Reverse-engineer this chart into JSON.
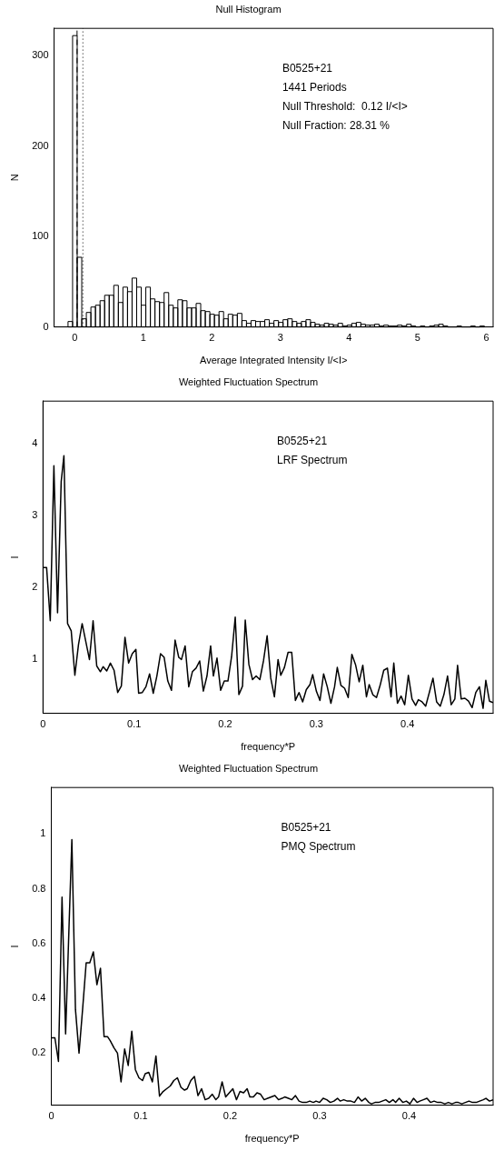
{
  "chart_data": [
    {
      "type": "histogram",
      "title": "Null Histogram",
      "xlabel": "Average Integrated Intensity I/<I>",
      "ylabel": "N",
      "color": "#000000",
      "grid": false,
      "annotations": [
        "B0525+21",
        "1441 Periods",
        "Null Threshold:  0.12 I/<I>",
        "Null Fraction: 28.31 %"
      ],
      "bins": [
        -0.0967,
        -0.03,
        0.0367,
        0.1034,
        0.1701,
        0.2368,
        0.3035,
        0.3702,
        0.4369,
        0.5036,
        0.5703,
        0.637,
        0.7037,
        0.7704,
        0.8371,
        0.9038,
        0.9705,
        1.0372,
        1.1039,
        1.1706,
        1.2373,
        1.304,
        1.3707,
        1.4374,
        1.5041,
        1.5708,
        1.6375,
        1.7042,
        1.7709,
        1.8376,
        1.9043,
        1.971,
        2.0377,
        2.1044,
        2.1711,
        2.2378,
        2.3045,
        2.3712,
        2.4379,
        2.5046,
        2.5713,
        2.638,
        2.7047,
        2.7714,
        2.8381,
        2.9048,
        2.9715,
        3.0382,
        3.1049,
        3.1716,
        3.2383,
        3.305,
        3.3717,
        3.4384,
        3.5051,
        3.5718,
        3.6385,
        3.7052,
        3.7719,
        3.8386,
        3.9053,
        3.972,
        4.0387,
        4.1054,
        4.1721,
        4.2388,
        4.3055,
        4.3722,
        4.4389,
        4.5056,
        4.5723,
        4.639,
        4.7057,
        4.7724,
        4.8391,
        4.9058,
        4.9725,
        5.0392,
        5.1059,
        5.1726,
        5.2393,
        5.306,
        5.3727,
        5.4394,
        5.5061,
        5.5728,
        5.6395,
        5.7062,
        5.7729,
        5.8396,
        5.9063,
        5.973
      ],
      "values": [
        6,
        322,
        77,
        9,
        16,
        22,
        24,
        29,
        35,
        35,
        46,
        27,
        44,
        39,
        54,
        44,
        24,
        44,
        31,
        28,
        27,
        38,
        24,
        21,
        30,
        29,
        21,
        21,
        26,
        18,
        17,
        14,
        13,
        17,
        9,
        14,
        13,
        15,
        7,
        4,
        7,
        6,
        6,
        8,
        4,
        7,
        5,
        8,
        9,
        6,
        4,
        6,
        8,
        5,
        3,
        2,
        4,
        3,
        2,
        4,
        1,
        2,
        4,
        5,
        3,
        2,
        2,
        3,
        1,
        2,
        1,
        1,
        2,
        1,
        3,
        1,
        0,
        1,
        0,
        1,
        2,
        3,
        1,
        0,
        0,
        1,
        0,
        0,
        1,
        0,
        1
      ],
      "ref_lines": [
        {
          "axis": "x",
          "value": 0.035,
          "line_style": "dashed"
        },
        {
          "axis": "x",
          "value": 0.12,
          "line_style": "dotted"
        }
      ],
      "xlim": [
        -0.3,
        6.1
      ],
      "xticks": [
        0,
        1,
        2,
        3,
        4,
        5,
        6
      ],
      "ylim": [
        0,
        330
      ],
      "yticks": [
        0,
        100,
        200,
        300
      ]
    },
    {
      "type": "line",
      "title": "Weighted Fluctuation Spectrum",
      "xlabel": "frequency*P",
      "ylabel": "I",
      "grid": false,
      "marker": "none",
      "annotations": [
        "B0525+21",
        "LRF Spectrum"
      ],
      "x": [
        0,
        0.004,
        0.008,
        0.012,
        0.016,
        0.02,
        0.023,
        0.027,
        0.031,
        0.035,
        0.039,
        0.043,
        0.047,
        0.051,
        0.055,
        0.059,
        0.063,
        0.066,
        0.07,
        0.074,
        0.078,
        0.082,
        0.086,
        0.09,
        0.094,
        0.098,
        0.102,
        0.105,
        0.109,
        0.113,
        0.117,
        0.121,
        0.125,
        0.129,
        0.133,
        0.137,
        0.141,
        0.145,
        0.149,
        0.152,
        0.156,
        0.16,
        0.164,
        0.168,
        0.172,
        0.176,
        0.18,
        0.184,
        0.187,
        0.191,
        0.195,
        0.199,
        0.203,
        0.207,
        0.211,
        0.215,
        0.219,
        0.222,
        0.226,
        0.23,
        0.234,
        0.238,
        0.242,
        0.246,
        0.25,
        0.254,
        0.258,
        0.261,
        0.265,
        0.269,
        0.273,
        0.277,
        0.281,
        0.285,
        0.289,
        0.293,
        0.296,
        0.3,
        0.304,
        0.308,
        0.312,
        0.316,
        0.32,
        0.323,
        0.327,
        0.331,
        0.335,
        0.339,
        0.343,
        0.347,
        0.351,
        0.355,
        0.358,
        0.362,
        0.366,
        0.37,
        0.374,
        0.378,
        0.382,
        0.385,
        0.389,
        0.393,
        0.397,
        0.401,
        0.405,
        0.409,
        0.412,
        0.416,
        0.42,
        0.424,
        0.428,
        0.432,
        0.436,
        0.44,
        0.444,
        0.448,
        0.452,
        0.455,
        0.459,
        0.463,
        0.467,
        0.471,
        0.475,
        0.479,
        0.483,
        0.486,
        0.49,
        0.494
      ],
      "series": [
        {
          "color": "#000000",
          "values": [
            2.27,
            2.27,
            1.53,
            3.69,
            1.64,
            3.47,
            3.83,
            1.49,
            1.39,
            0.77,
            1.2,
            1.49,
            1.24,
            0.99,
            1.53,
            0.9,
            0.82,
            0.89,
            0.83,
            0.94,
            0.84,
            0.53,
            0.62,
            1.3,
            0.94,
            1.07,
            1.13,
            0.52,
            0.53,
            0.61,
            0.79,
            0.52,
            0.76,
            1.07,
            1.02,
            0.69,
            0.56,
            1.26,
            1.02,
            0.99,
            1.18,
            0.61,
            0.82,
            0.87,
            0.97,
            0.55,
            0.76,
            1.18,
            0.76,
            1.01,
            0.56,
            0.69,
            0.69,
            1.03,
            1.58,
            0.5,
            0.62,
            1.54,
            0.92,
            0.71,
            0.76,
            0.71,
            0.97,
            1.32,
            0.73,
            0.47,
            0.99,
            0.77,
            0.88,
            1.09,
            1.09,
            0.42,
            0.53,
            0.4,
            0.57,
            0.64,
            0.78,
            0.55,
            0.42,
            0.79,
            0.61,
            0.38,
            0.61,
            0.88,
            0.63,
            0.59,
            0.46,
            1.06,
            0.92,
            0.68,
            0.91,
            0.47,
            0.64,
            0.5,
            0.46,
            0.63,
            0.84,
            0.87,
            0.47,
            0.94,
            0.38,
            0.48,
            0.36,
            0.77,
            0.44,
            0.35,
            0.43,
            0.4,
            0.34,
            0.53,
            0.73,
            0.4,
            0.34,
            0.5,
            0.76,
            0.36,
            0.44,
            0.91,
            0.44,
            0.45,
            0.41,
            0.32,
            0.53,
            0.61,
            0.31,
            0.7,
            0.41,
            0.39
          ]
        }
      ],
      "xlim": [
        0,
        0.494
      ],
      "xticks": [
        0,
        0.1,
        0.2,
        0.3,
        0.4
      ],
      "ylim": [
        0.24,
        4.59
      ],
      "yticks": [
        1,
        2,
        3,
        4
      ]
    },
    {
      "type": "line",
      "title": "Weighted Fluctuation Spectrum",
      "xlabel": "frequency*P",
      "ylabel": "I",
      "grid": false,
      "marker": "none",
      "annotations": [
        "B0525+21",
        "PMQ Spectrum"
      ],
      "x": [
        0,
        0.004,
        0.008,
        0.012,
        0.016,
        0.02,
        0.023,
        0.027,
        0.031,
        0.035,
        0.039,
        0.043,
        0.047,
        0.051,
        0.055,
        0.059,
        0.063,
        0.066,
        0.07,
        0.074,
        0.078,
        0.082,
        0.086,
        0.09,
        0.094,
        0.098,
        0.102,
        0.105,
        0.109,
        0.113,
        0.117,
        0.121,
        0.125,
        0.129,
        0.133,
        0.137,
        0.141,
        0.145,
        0.149,
        0.152,
        0.156,
        0.16,
        0.164,
        0.168,
        0.172,
        0.176,
        0.18,
        0.184,
        0.187,
        0.191,
        0.195,
        0.199,
        0.203,
        0.207,
        0.211,
        0.215,
        0.219,
        0.222,
        0.226,
        0.23,
        0.234,
        0.238,
        0.242,
        0.246,
        0.25,
        0.254,
        0.258,
        0.261,
        0.265,
        0.269,
        0.273,
        0.277,
        0.281,
        0.285,
        0.289,
        0.293,
        0.296,
        0.3,
        0.304,
        0.308,
        0.312,
        0.316,
        0.32,
        0.323,
        0.327,
        0.331,
        0.335,
        0.339,
        0.343,
        0.347,
        0.351,
        0.355,
        0.358,
        0.362,
        0.366,
        0.37,
        0.374,
        0.378,
        0.382,
        0.385,
        0.389,
        0.393,
        0.397,
        0.401,
        0.405,
        0.409,
        0.412,
        0.416,
        0.42,
        0.424,
        0.428,
        0.432,
        0.436,
        0.44,
        0.444,
        0.448,
        0.452,
        0.455,
        0.459,
        0.463,
        0.467,
        0.471,
        0.475,
        0.479,
        0.483,
        0.486,
        0.49,
        0.494
      ],
      "series": [
        {
          "color": "#000000",
          "values": [
            0.256,
            0.256,
            0.17,
            0.77,
            0.27,
            0.68,
            0.98,
            0.36,
            0.2,
            0.36,
            0.53,
            0.53,
            0.57,
            0.45,
            0.51,
            0.26,
            0.26,
            0.245,
            0.22,
            0.2,
            0.095,
            0.215,
            0.155,
            0.28,
            0.14,
            0.11,
            0.1,
            0.125,
            0.13,
            0.095,
            0.19,
            0.043,
            0.06,
            0.07,
            0.08,
            0.1,
            0.11,
            0.075,
            0.065,
            0.07,
            0.1,
            0.115,
            0.045,
            0.07,
            0.03,
            0.035,
            0.05,
            0.03,
            0.04,
            0.095,
            0.04,
            0.055,
            0.07,
            0.03,
            0.06,
            0.055,
            0.07,
            0.04,
            0.04,
            0.055,
            0.05,
            0.03,
            0.035,
            0.04,
            0.045,
            0.03,
            0.035,
            0.04,
            0.035,
            0.03,
            0.045,
            0.025,
            0.02,
            0.02,
            0.025,
            0.02,
            0.025,
            0.02,
            0.035,
            0.03,
            0.02,
            0.025,
            0.035,
            0.025,
            0.03,
            0.025,
            0.025,
            0.02,
            0.04,
            0.025,
            0.035,
            0.02,
            0.015,
            0.02,
            0.02,
            0.025,
            0.03,
            0.02,
            0.03,
            0.02,
            0.035,
            0.02,
            0.025,
            0.015,
            0.035,
            0.02,
            0.025,
            0.03,
            0.035,
            0.02,
            0.025,
            0.02,
            0.02,
            0.015,
            0.02,
            0.015,
            0.02,
            0.02,
            0.015,
            0.02,
            0.025,
            0.02,
            0.02,
            0.025,
            0.03,
            0.035,
            0.025,
            0.03
          ]
        }
      ],
      "xlim": [
        0,
        0.494
      ],
      "xticks": [
        0,
        0.1,
        0.2,
        0.3,
        0.4
      ],
      "ylim": [
        0.01,
        1.17
      ],
      "yticks": [
        0.2,
        0.4,
        0.6,
        0.8,
        1
      ]
    }
  ]
}
